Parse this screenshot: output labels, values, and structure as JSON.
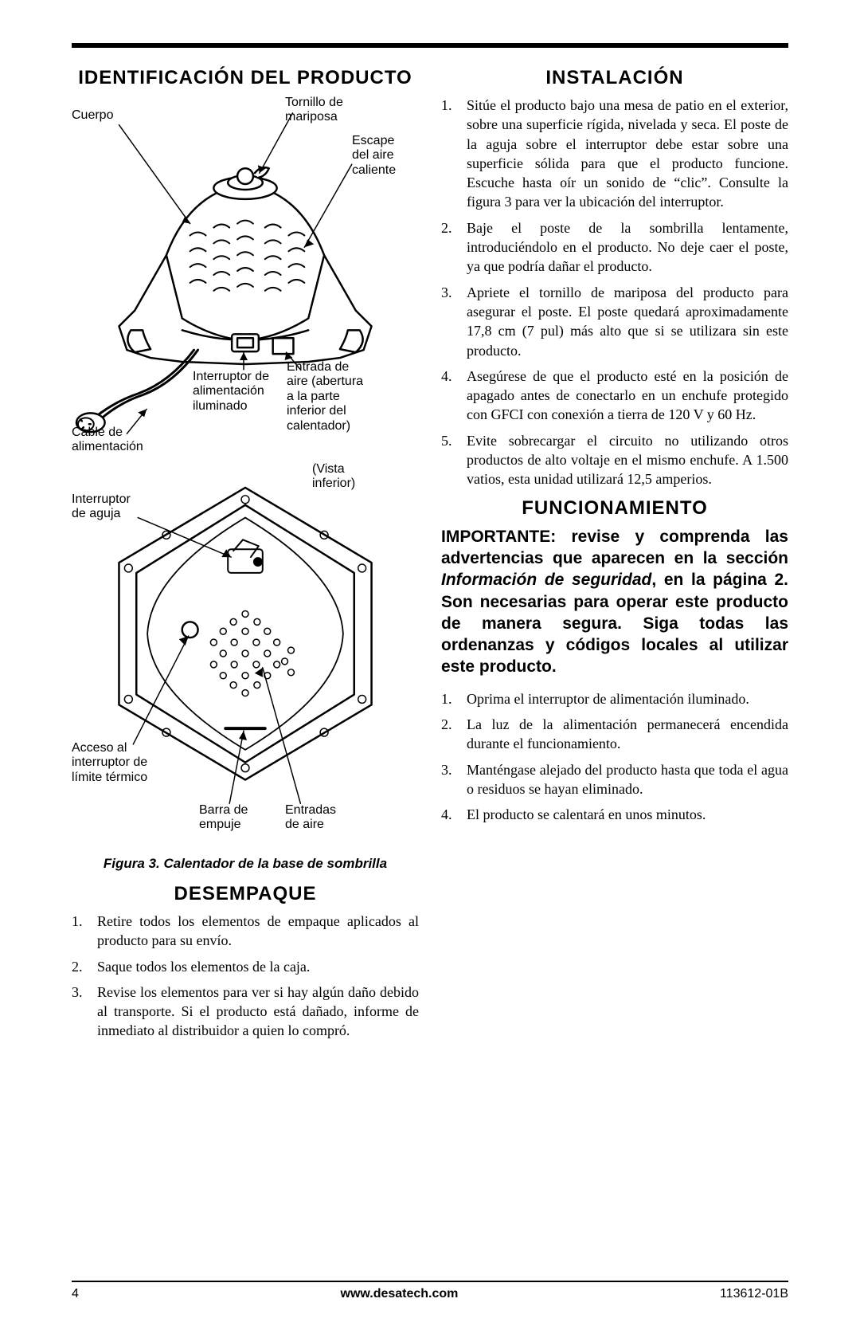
{
  "sections": {
    "identificacion_title": "Identificación del producto",
    "desempaque_title": "Desempaque",
    "instalacion_title": "Instalación",
    "funcionamiento_title": "Funcionamiento"
  },
  "diagram1_labels": {
    "cuerpo": "Cuerpo",
    "tornillo": "Tornillo de\nmariposa",
    "escape": "Escape\ndel aire\ncaliente",
    "cable": "Cable de\nalimentación",
    "interruptor_ilum": "Interruptor de\nalimentación\niluminado",
    "entrada": "Entrada de\naire (abertura\na la parte\ninferior del\ncalentador)"
  },
  "diagram2_labels": {
    "vista": "(Vista\ninferior)",
    "interruptor_aguja": "Interruptor\nde aguja",
    "acceso": "Acceso al\ninterruptor de\nlímite térmico",
    "barra": "Barra de\nempuje",
    "entradas": "Entradas\nde aire"
  },
  "figure_caption": "Figura 3. Calentador de la base de sombrilla",
  "desempaque_steps": [
    "Retire todos los elementos de empaque aplicados al producto para su envío.",
    "Saque todos los elementos de la caja.",
    "Revise los elementos para ver si hay algún daño debido al transporte. Si el producto está dañado, informe de inmediato al distribuidor a quien lo compró."
  ],
  "instalacion_steps": [
    "Sitúe el producto bajo una mesa de patio en el exterior, sobre una superficie rígida, nivelada y seca. El poste de la aguja sobre el interruptor debe estar sobre una superficie sólida para que el producto funcione. Escuche hasta oír un sonido de “clic”. Consulte la figura 3 para ver la ubicación del interruptor.",
    "Baje el poste de la sombrilla lentamente, introduciéndolo en el producto. No deje caer el poste, ya que podría dañar el producto.",
    "Apriete el tornillo de mariposa del producto para asegurar el poste. El poste quedará aproximadamente 17,8 cm (7 pul) más alto que si se utilizara sin este producto.",
    "Asegúrese de que el producto esté en la posición de apagado antes de conectarlo en un enchufe protegido con GFCI con conexión a tierra de 120 V y 60 Hz.",
    "Evite sobrecargar el circuito no utilizando otros productos de alto voltaje en el mismo enchufe. A 1.500 vatios, esta unidad utilizará 12,5 amperios."
  ],
  "funcionamiento_important": {
    "lead": "IMPORTANTE:",
    "body_part1": " revise y comprenda las advertencias que aparecen en la sección ",
    "em": "Información de seguridad",
    "body_part2": ", en la página 2. Son necesarias para operar este producto de manera segura. Siga todas las ordenanzas y códigos locales al utilizar este producto."
  },
  "funcionamiento_steps": [
    "Oprima el interruptor de alimentación iluminado.",
    "La luz de la alimentación permanecerá encendida durante el funcionamiento.",
    "Manténgase alejado del producto hasta que toda el agua o residuos se hayan eliminado.",
    "El producto se calentará en unos minutos."
  ],
  "footer": {
    "page": "4",
    "url": "www.desatech.com",
    "docnum": "113612-01B"
  },
  "diagram_style": {
    "stroke": "#000000",
    "stroke_width": 2.5,
    "thin_stroke_width": 1.5,
    "fill": "#ffffff"
  }
}
